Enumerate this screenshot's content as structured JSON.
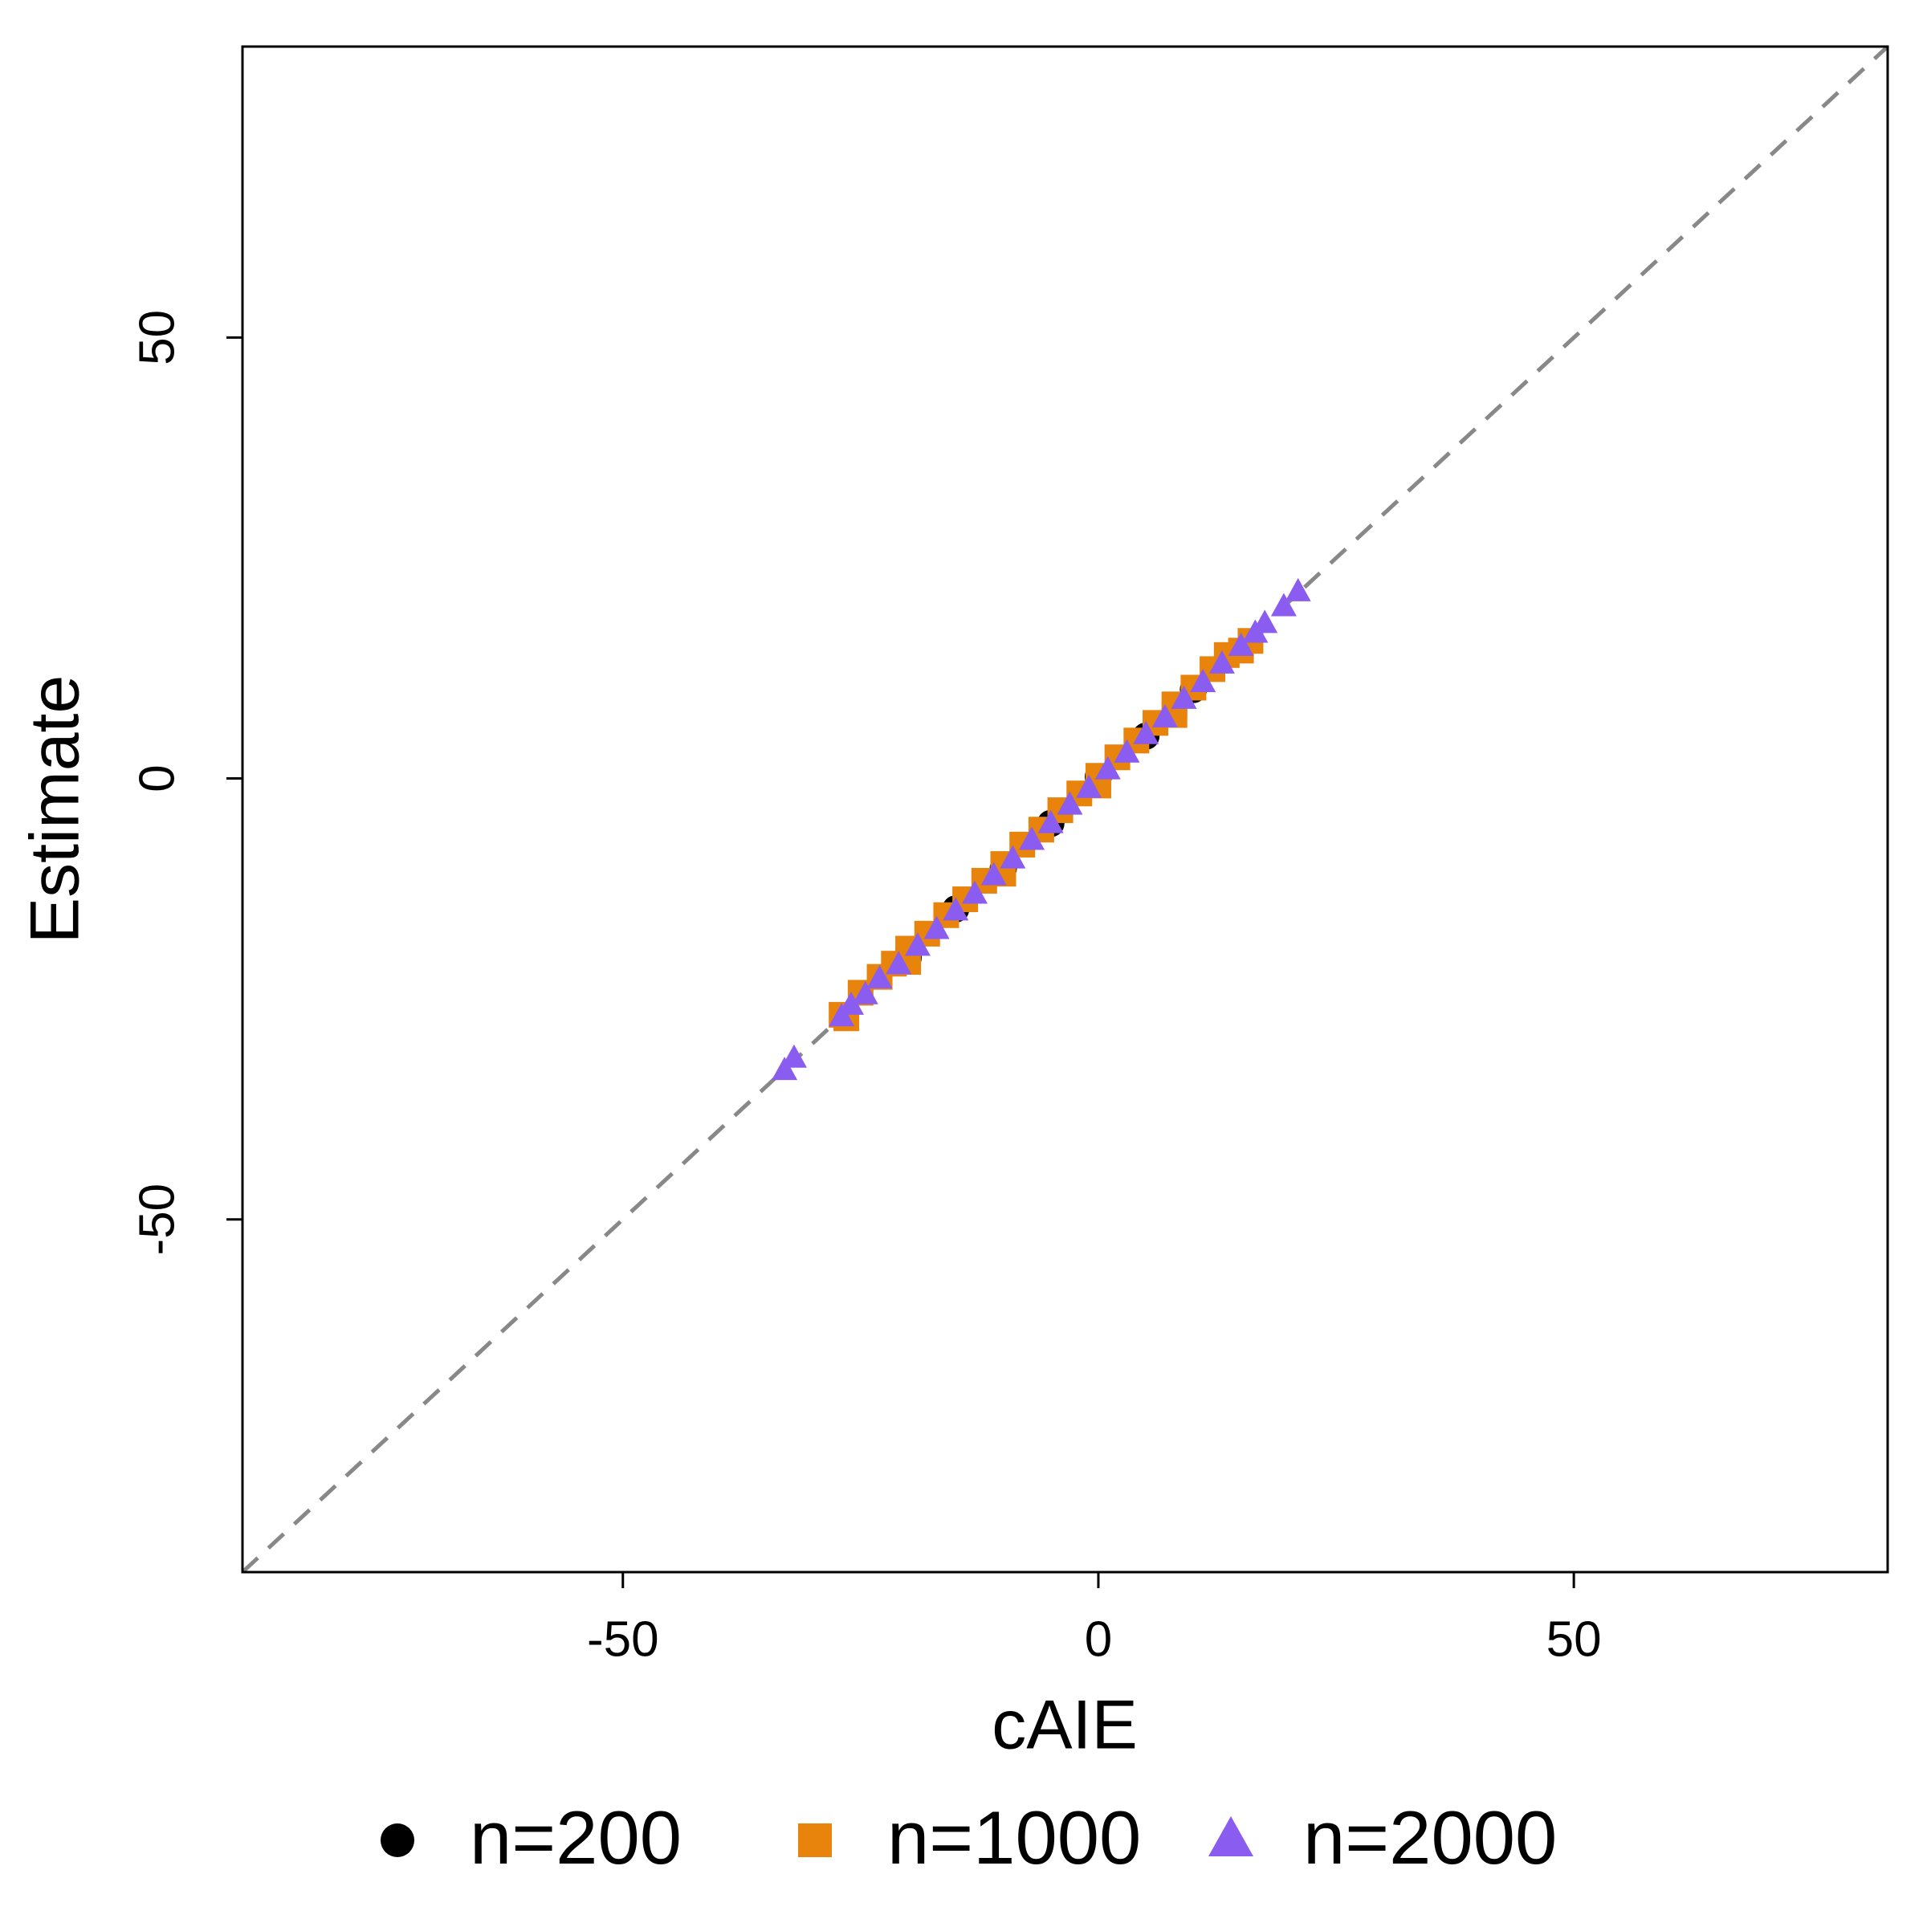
{
  "chart_data": {
    "type": "scatter",
    "x_label": "cAIE",
    "y_label": "Estimate",
    "xlim": [
      -90,
      83
    ],
    "ylim": [
      -90,
      83
    ],
    "xticks": [
      -50,
      0,
      50
    ],
    "yticks": [
      -50,
      0,
      50
    ],
    "diagonal": true,
    "diagonal_color": "#888888",
    "series": [
      {
        "name": "n=200",
        "color": "#000000",
        "marker": "circle",
        "x": [
          -20,
          -15,
          -10,
          -5,
          0,
          5,
          10
        ],
        "y": [
          -20.3,
          -14.8,
          -10.2,
          -5.1,
          0.2,
          4.8,
          10.1
        ]
      },
      {
        "name": "n=1000",
        "color": "#e8830c",
        "marker": "square",
        "x": [
          -27,
          -26.5,
          -25,
          -23,
          -21.5,
          -20,
          -18,
          -16,
          -14,
          -12,
          -10,
          -8,
          -6,
          -4,
          -2,
          0,
          2,
          4,
          6,
          8,
          10,
          12,
          13.5,
          15,
          16,
          -20,
          -10,
          0,
          8
        ],
        "y": [
          -26.8,
          -27.2,
          -24.3,
          -22.5,
          -21,
          -19.3,
          -17.6,
          -15.5,
          -13.7,
          -11.6,
          -9.7,
          -7.5,
          -5.8,
          -3.6,
          -1.7,
          0.3,
          2.4,
          4.3,
          6.3,
          8.4,
          10.3,
          12.4,
          14,
          14.5,
          15.6,
          -20.8,
          -10.8,
          -0.8,
          7.2
        ]
      },
      {
        "name": "n=2000",
        "color": "#8b5cf0",
        "marker": "triangle",
        "x": [
          -33,
          -32,
          -27,
          -26,
          -24.5,
          -23,
          -21,
          -19,
          -17,
          -15,
          -13,
          -11,
          -9,
          -7,
          -5,
          -3,
          -1,
          1,
          3,
          5,
          7,
          9,
          11,
          13,
          15,
          16.5,
          17.5,
          19.5,
          21
        ],
        "y": [
          -33.2,
          -31.8,
          -27.1,
          -25.8,
          -24.6,
          -22.8,
          -21.2,
          -19.1,
          -17.2,
          -15.1,
          -13.2,
          -11.1,
          -9.2,
          -7.1,
          -5.2,
          -3.1,
          -1.2,
          0.9,
          2.8,
          4.9,
          6.8,
          8.9,
          10.8,
          12.9,
          14.9,
          16.4,
          17.5,
          19.4,
          21.1
        ]
      }
    ]
  }
}
